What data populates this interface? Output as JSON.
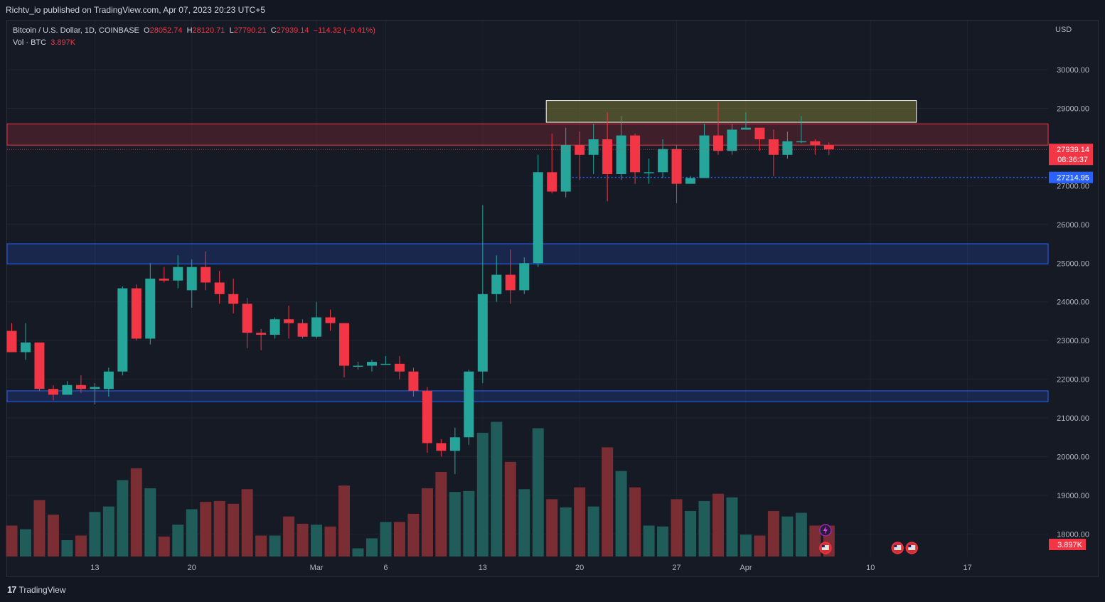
{
  "header": {
    "published_text": "Richtv_io published on TradingView.com, Apr 07, 2023 20:23 UTC+5"
  },
  "legend": {
    "symbol": "Bitcoin / U.S. Dollar, 1D, COINBASE",
    "o_label": "O",
    "o_value": "28052.74",
    "h_label": "H",
    "h_value": "28120.71",
    "l_label": "L",
    "l_value": "27790.21",
    "c_label": "C",
    "c_value": "27939.14",
    "change": "−114.32 (−0.41%)",
    "vol_label": "Vol · BTC",
    "vol_value": "3.897K"
  },
  "footer": {
    "brand": "TradingView"
  },
  "colors": {
    "up": "#26a69a",
    "down": "#f23645",
    "vol_up": "#1f5c5a",
    "vol_down": "#7a2e34",
    "blue_zone": "#2962ff",
    "red_zone": "#f23645",
    "yellow_zone": "#b0b03a"
  },
  "chart_data": {
    "type": "candlestick",
    "currency": "USD",
    "y_ticks": [
      "30000.00",
      "29000.00",
      "28000.00",
      "27000.00",
      "26000.00",
      "25000.00",
      "24000.00",
      "23000.00",
      "22000.00",
      "21000.00",
      "20000.00",
      "19000.00",
      "18000.00"
    ],
    "x_ticks": [
      {
        "label": "13",
        "i": 6
      },
      {
        "label": "20",
        "i": 13
      },
      {
        "label": "Mar",
        "i": 22
      },
      {
        "label": "6",
        "i": 27
      },
      {
        "label": "13",
        "i": 34
      },
      {
        "label": "20",
        "i": 41
      },
      {
        "label": "27",
        "i": 48
      },
      {
        "label": "Apr",
        "i": 53
      },
      {
        "label": "10",
        "i": 62
      },
      {
        "label": "17",
        "i": 69
      }
    ],
    "last_price": {
      "value": "27939.14",
      "countdown": "08:36:37"
    },
    "level_line": {
      "value": "27214.95"
    },
    "volume_last": "3.897K",
    "zones": [
      {
        "type": "red",
        "y1": 28050,
        "y2": 28600,
        "i1": -1,
        "i2": 75
      },
      {
        "type": "blue",
        "y1": 24980,
        "y2": 25500,
        "i1": -1,
        "i2": 75
      },
      {
        "type": "blue",
        "y1": 21420,
        "y2": 21700,
        "i1": -1,
        "i2": 75
      },
      {
        "type": "yellow",
        "y1": 28640,
        "y2": 29200,
        "i1": 39,
        "i2": 65
      }
    ],
    "candles": [
      [
        23250,
        23450,
        22700,
        22700,
        0.34
      ],
      [
        22700,
        23450,
        22500,
        22950,
        0.3
      ],
      [
        22950,
        22950,
        21700,
        21750,
        0.62
      ],
      [
        21750,
        21850,
        21450,
        21600,
        0.46
      ],
      [
        21600,
        21950,
        21600,
        21850,
        0.18
      ],
      [
        21850,
        22100,
        21650,
        21750,
        0.23
      ],
      [
        21750,
        21900,
        21350,
        21800,
        0.49
      ],
      [
        21750,
        22300,
        21550,
        22200,
        0.55
      ],
      [
        22200,
        24400,
        22100,
        24350,
        0.84
      ],
      [
        24350,
        24450,
        23000,
        23050,
        0.97
      ],
      [
        23050,
        25000,
        22900,
        24600,
        0.75
      ],
      [
        24600,
        24900,
        24500,
        24550,
        0.22
      ],
      [
        24550,
        25200,
        24350,
        24900,
        0.35
      ],
      [
        24300,
        25100,
        23850,
        24900,
        0.52
      ],
      [
        24900,
        25300,
        24300,
        24500,
        0.6
      ],
      [
        24500,
        24800,
        23950,
        24200,
        0.61
      ],
      [
        24200,
        24600,
        23700,
        23950,
        0.58
      ],
      [
        23950,
        24100,
        22800,
        23200,
        0.74
      ],
      [
        23200,
        23300,
        22750,
        23150,
        0.23
      ],
      [
        23150,
        23600,
        23050,
        23550,
        0.23
      ],
      [
        23550,
        23900,
        23050,
        23450,
        0.44
      ],
      [
        23450,
        23550,
        23050,
        23100,
        0.36
      ],
      [
        23100,
        24000,
        23050,
        23600,
        0.35
      ],
      [
        23600,
        23800,
        23250,
        23450,
        0.33
      ],
      [
        23450,
        23450,
        22050,
        22350,
        0.78
      ],
      [
        22350,
        22450,
        22250,
        22350,
        0.09
      ],
      [
        22350,
        22500,
        22200,
        22450,
        0.2
      ],
      [
        22400,
        22600,
        22400,
        22400,
        0.38
      ],
      [
        22400,
        22600,
        22000,
        22200,
        0.38
      ],
      [
        22200,
        22300,
        21550,
        21700,
        0.47
      ],
      [
        21700,
        21800,
        20100,
        20350,
        0.75
      ],
      [
        20350,
        20450,
        20000,
        20150,
        0.93
      ],
      [
        20150,
        20750,
        19550,
        20500,
        0.71
      ],
      [
        20500,
        22250,
        20300,
        22200,
        0.72
      ],
      [
        22200,
        26500,
        21900,
        24200,
        1.36
      ],
      [
        24200,
        25200,
        24000,
        24700,
        1.48
      ],
      [
        24700,
        25350,
        23950,
        24300,
        1.04
      ],
      [
        24300,
        25150,
        24200,
        25000,
        0.74
      ],
      [
        25000,
        27800,
        24900,
        27350,
        1.41
      ],
      [
        27350,
        28350,
        26800,
        26850,
        0.63
      ],
      [
        26850,
        28500,
        26700,
        28050,
        0.54
      ],
      [
        28050,
        28400,
        27150,
        27800,
        0.76
      ],
      [
        27800,
        28600,
        27300,
        28200,
        0.55
      ],
      [
        28200,
        28900,
        26600,
        27300,
        1.2
      ],
      [
        27300,
        28800,
        27150,
        28300,
        0.94
      ],
      [
        28300,
        28350,
        27050,
        27350,
        0.76
      ],
      [
        27350,
        27700,
        27050,
        27350,
        0.34
      ],
      [
        27350,
        28200,
        27200,
        27950,
        0.33
      ],
      [
        27950,
        28050,
        26550,
        27050,
        0.63
      ],
      [
        27050,
        27250,
        27050,
        27200,
        0.5
      ],
      [
        27200,
        28600,
        27200,
        28300,
        0.61
      ],
      [
        28300,
        29150,
        27800,
        27900,
        0.69
      ],
      [
        27900,
        28600,
        27800,
        28450,
        0.65
      ],
      [
        28450,
        28900,
        28450,
        28500,
        0.24
      ],
      [
        28500,
        28500,
        27900,
        28200,
        0.23
      ],
      [
        28200,
        28450,
        27250,
        27800,
        0.5
      ],
      [
        27800,
        28400,
        27700,
        28150,
        0.44
      ],
      [
        28150,
        28800,
        28100,
        28150,
        0.48
      ],
      [
        28150,
        28200,
        27800,
        28050,
        0.34
      ],
      [
        28052.74,
        28120.71,
        27790.21,
        27939.14,
        0.34
      ]
    ]
  }
}
